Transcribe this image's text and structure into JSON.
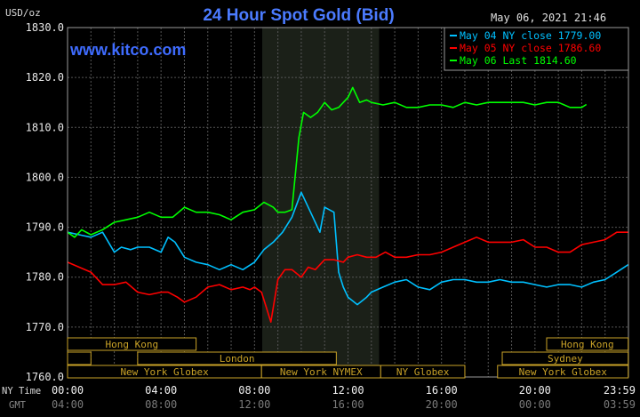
{
  "chart_data": {
    "type": "line",
    "title": "24 Hour Spot Gold (Bid)",
    "ylabel": "USD/oz",
    "watermark": "www.kitco.com",
    "timestamp": "May 06, 2021 21:46",
    "ylim": [
      1760,
      1830
    ],
    "yticks": [
      "1830.0",
      "1820.0",
      "1810.0",
      "1800.0",
      "1790.0",
      "1780.0",
      "1770.0",
      "1760.0"
    ],
    "ytick_values": [
      1830,
      1820,
      1810,
      1800,
      1790,
      1780,
      1770,
      1760
    ],
    "xlim": [
      0,
      24
    ],
    "xticks_ny": [
      "00:00",
      "04:00",
      "08:00",
      "12:00",
      "16:00",
      "20:00",
      "23:59"
    ],
    "xticks_gmt": [
      "04:00",
      "08:00",
      "12:00",
      "16:00",
      "20:00",
      "00:00",
      "03:59"
    ],
    "xtick_positions": [
      0,
      4,
      8,
      12,
      16,
      20,
      24
    ],
    "x_axis_label_ny": "NY Time",
    "x_axis_label_gmt": "GMT",
    "shaded_region": [
      8.33,
      13.33
    ],
    "sessions": [
      {
        "label": "Hong Kong",
        "start": 0,
        "end": 5.5,
        "row": 0
      },
      {
        "label": "Hong Kong",
        "start": 20.5,
        "end": 23.99,
        "row": 0
      },
      {
        "label": "London",
        "start": 0,
        "end": 1,
        "row": 1
      },
      {
        "label": "London",
        "start": 3,
        "end": 11.5,
        "row": 1
      },
      {
        "label": "Sydney",
        "start": 18.6,
        "end": 23.99,
        "row": 1
      },
      {
        "label": "New York Globex",
        "start": 0,
        "end": 8.3,
        "row": 2
      },
      {
        "label": "New York NYMEX",
        "start": 8.3,
        "end": 13.4,
        "row": 2
      },
      {
        "label": "NY Globex",
        "start": 13.4,
        "end": 17.0,
        "row": 2
      },
      {
        "label": "New York Globex",
        "start": 18.4,
        "end": 23.99,
        "row": 2
      }
    ],
    "series": [
      {
        "name": "May 04 NY close 1779.00",
        "color": "#00c0ff",
        "x": [
          0,
          0.5,
          1,
          1.5,
          2,
          2.3,
          2.7,
          3,
          3.5,
          4,
          4.3,
          4.6,
          5,
          5.5,
          6,
          6.5,
          7,
          7.5,
          8,
          8.4,
          8.8,
          9.2,
          9.6,
          10,
          10.4,
          10.8,
          11,
          11.4,
          11.6,
          11.8,
          12,
          12.4,
          12.8,
          13,
          13.5,
          14,
          14.5,
          15,
          15.5,
          16,
          16.5,
          17,
          17.5,
          18,
          18.5,
          19,
          19.5,
          20,
          20.5,
          21,
          21.5,
          22,
          22.5,
          23,
          23.5,
          23.99
        ],
        "y": [
          1789,
          1788.5,
          1788,
          1789,
          1785,
          1786,
          1785.5,
          1786,
          1786,
          1785,
          1788,
          1787,
          1784,
          1783,
          1782.5,
          1781.5,
          1782.5,
          1781.5,
          1783,
          1785.5,
          1787,
          1789,
          1792,
          1797,
          1793,
          1789,
          1794,
          1793,
          1781,
          1778,
          1776,
          1774.5,
          1776,
          1777,
          1778,
          1779,
          1779.5,
          1778,
          1777.5,
          1779,
          1779.5,
          1779.5,
          1779,
          1779,
          1779.5,
          1779,
          1779,
          1778.5,
          1778,
          1778.5,
          1778.5,
          1778,
          1779,
          1779.5,
          1781,
          1782.5
        ]
      },
      {
        "name": "May 05 NY close 1786.60",
        "color": "#ff0000",
        "x": [
          0,
          0.5,
          1,
          1.5,
          2,
          2.5,
          3,
          3.5,
          4,
          4.3,
          4.7,
          5,
          5.5,
          6,
          6.5,
          7,
          7.5,
          7.8,
          8,
          8.3,
          8.5,
          8.7,
          9,
          9.3,
          9.6,
          10,
          10.3,
          10.6,
          11,
          11.4,
          11.8,
          12,
          12.4,
          12.8,
          13.2,
          13.6,
          14,
          14.5,
          15,
          15.5,
          16,
          16.5,
          17,
          17.5,
          18,
          18.5,
          19,
          19.5,
          20,
          20.5,
          21,
          21.5,
          22,
          22.5,
          23,
          23.5,
          23.99
        ],
        "y": [
          1783,
          1782,
          1781,
          1778.5,
          1778.5,
          1779,
          1777,
          1776.5,
          1777,
          1777,
          1776,
          1775,
          1776,
          1778,
          1778.5,
          1777.5,
          1778,
          1777.5,
          1778,
          1777,
          1774,
          1771,
          1779.5,
          1781.5,
          1781.5,
          1780,
          1782,
          1781.5,
          1783.5,
          1783.5,
          1783,
          1784,
          1784.5,
          1784,
          1784,
          1785,
          1784,
          1784,
          1784.5,
          1784.5,
          1785,
          1786,
          1787,
          1788,
          1787,
          1787,
          1787,
          1787.5,
          1786,
          1786,
          1785,
          1785,
          1786.5,
          1787,
          1787.5,
          1789,
          1789
        ]
      },
      {
        "name": "May 06 Last 1814.60",
        "color": "#00ff00",
        "x": [
          0,
          0.3,
          0.6,
          1,
          1.5,
          2,
          2.5,
          3,
          3.5,
          4,
          4.5,
          5,
          5.5,
          6,
          6.5,
          7,
          7.5,
          8,
          8.4,
          8.8,
          9,
          9.3,
          9.6,
          9.9,
          10.1,
          10.4,
          10.7,
          11,
          11.3,
          11.6,
          12,
          12.2,
          12.5,
          12.8,
          13,
          13.5,
          14,
          14.5,
          15,
          15.5,
          16,
          16.5,
          17,
          17.5,
          18,
          18.5,
          19,
          19.5,
          20,
          20.5,
          21,
          21.5,
          22,
          22.2
        ],
        "y": [
          1789,
          1788,
          1789.5,
          1788.5,
          1789.5,
          1791,
          1791.5,
          1792,
          1793,
          1792,
          1792,
          1794,
          1793,
          1793,
          1792.5,
          1791.5,
          1793,
          1793.5,
          1795,
          1794,
          1793,
          1793,
          1793.5,
          1808,
          1813,
          1812,
          1813,
          1815,
          1813.5,
          1814,
          1816,
          1818,
          1815,
          1815.5,
          1815,
          1814.5,
          1815,
          1814,
          1814,
          1814.5,
          1814.5,
          1814,
          1815,
          1814.5,
          1815,
          1815,
          1815,
          1815,
          1814.5,
          1815,
          1815,
          1814,
          1814,
          1814.6
        ]
      }
    ]
  }
}
